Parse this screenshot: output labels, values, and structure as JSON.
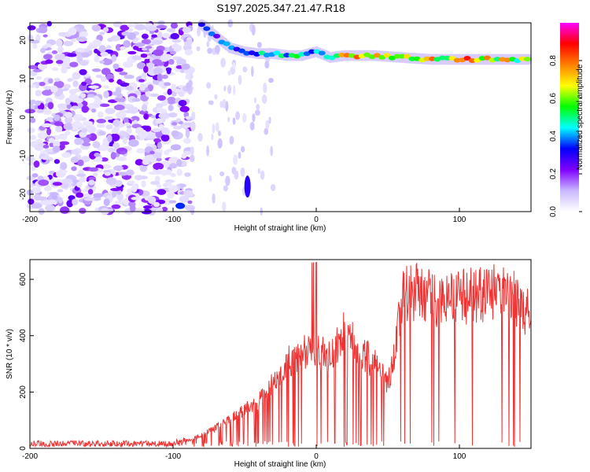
{
  "title": "S197.2025.347.21.47.R18",
  "chart_data": [
    {
      "type": "heatmap",
      "xlabel": "Height of straight line (km)",
      "ylabel": "Frequency (Hz)",
      "xlim": [
        -200,
        150
      ],
      "ylim": [
        -24.5,
        24.5
      ],
      "x_ticks": [
        -200,
        -100,
        0,
        100
      ],
      "y_ticks": [
        -20,
        -10,
        0,
        10,
        20
      ],
      "colorbar": {
        "label": "Normalized spectral amplitude",
        "range": [
          0,
          1
        ],
        "ticks": [
          0.0,
          0.2,
          0.4,
          0.6,
          0.8
        ],
        "tick_labels": [
          "0.0",
          "0.2",
          "0.4",
          "0.6",
          "0.8"
        ],
        "stops": [
          "#ffffff",
          "#c9b8ff",
          "#8000ff",
          "#0000ff",
          "#00ffff",
          "#00ff00",
          "#ffff00",
          "#ff8000",
          "#ff0000",
          "#ff00ff"
        ]
      },
      "ridge": {
        "x": [
          -80,
          -70,
          -60,
          -50,
          -40,
          -30,
          -20,
          -10,
          0,
          10,
          20,
          40,
          60,
          80,
          100,
          120,
          145
        ],
        "frequency": [
          24,
          21,
          18,
          17,
          16.5,
          16.5,
          16,
          16,
          17,
          15.5,
          16,
          16,
          15.5,
          15,
          15,
          15,
          15
        ],
        "amplitude": [
          0.35,
          0.4,
          0.45,
          0.5,
          0.55,
          0.55,
          0.6,
          0.6,
          0.55,
          0.55,
          0.85,
          0.8,
          0.75,
          0.8,
          0.9,
          0.85,
          0.8
        ]
      },
      "grid": false
    },
    {
      "type": "line",
      "xlabel": "Height of straight line (km)",
      "ylabel": "SNR (10 * v/v)",
      "xlim": [
        -200,
        150
      ],
      "ylim": [
        0,
        670
      ],
      "x_ticks": [
        -200,
        -100,
        0,
        100
      ],
      "y_ticks": [
        0,
        200,
        400,
        600
      ],
      "color": "#ee3333",
      "series": [
        {
          "x": [
            -200,
            -180,
            -160,
            -140,
            -120,
            -100,
            -90,
            -80,
            -70,
            -60,
            -50,
            -40,
            -30,
            -20,
            -10,
            -5,
            0,
            10,
            20,
            30,
            40,
            50,
            55,
            60,
            70,
            80,
            90,
            100,
            110,
            120,
            130,
            140,
            150
          ],
          "y": [
            20,
            20,
            20,
            20,
            20,
            20,
            30,
            50,
            80,
            110,
            150,
            180,
            250,
            330,
            370,
            380,
            370,
            350,
            450,
            380,
            330,
            250,
            380,
            590,
            600,
            580,
            560,
            580,
            590,
            600,
            590,
            570,
            500
          ]
        }
      ],
      "grid": false
    }
  ]
}
